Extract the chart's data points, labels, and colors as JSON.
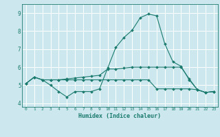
{
  "xlabel": "Humidex (Indice chaleur)",
  "xlim": [
    -0.5,
    23.5
  ],
  "ylim": [
    3.8,
    9.5
  ],
  "yticks": [
    4,
    5,
    6,
    7,
    8,
    9
  ],
  "xticks": [
    0,
    1,
    2,
    3,
    4,
    5,
    6,
    7,
    8,
    9,
    10,
    11,
    12,
    13,
    14,
    15,
    16,
    17,
    18,
    19,
    20,
    21,
    22,
    23
  ],
  "bg_color": "#cce8ee",
  "grid_color": "#ffffff",
  "line_color": "#1a7a6e",
  "line1_x": [
    0,
    1,
    2,
    3,
    4,
    5,
    6,
    7,
    8,
    9,
    10,
    11,
    12,
    13,
    14,
    15,
    16,
    17,
    18,
    19,
    20,
    21,
    22,
    23
  ],
  "line1_y": [
    5.1,
    5.45,
    5.3,
    5.0,
    4.65,
    4.35,
    4.65,
    4.65,
    4.65,
    4.8,
    5.95,
    7.1,
    7.65,
    8.05,
    8.75,
    8.95,
    8.85,
    7.3,
    6.3,
    6.05,
    5.3,
    4.75,
    4.6,
    4.65
  ],
  "line2_x": [
    0,
    1,
    2,
    3,
    4,
    5,
    6,
    7,
    8,
    9,
    10,
    11,
    12,
    13,
    14,
    15,
    16,
    17,
    18,
    19,
    20,
    21,
    22,
    23
  ],
  "line2_y": [
    5.1,
    5.45,
    5.3,
    5.3,
    5.3,
    5.35,
    5.4,
    5.45,
    5.5,
    5.55,
    5.9,
    5.9,
    5.95,
    6.0,
    6.0,
    6.0,
    6.0,
    6.0,
    6.0,
    6.0,
    5.35,
    4.75,
    4.6,
    4.65
  ],
  "line3_x": [
    0,
    1,
    2,
    3,
    4,
    5,
    6,
    7,
    8,
    9,
    10,
    11,
    12,
    13,
    14,
    15,
    16,
    17,
    18,
    19,
    20,
    21,
    22,
    23
  ],
  "line3_y": [
    5.1,
    5.45,
    5.3,
    5.3,
    5.3,
    5.3,
    5.3,
    5.3,
    5.3,
    5.3,
    5.3,
    5.3,
    5.3,
    5.3,
    5.3,
    5.3,
    4.8,
    4.8,
    4.8,
    4.8,
    4.8,
    4.75,
    4.6,
    4.65
  ]
}
